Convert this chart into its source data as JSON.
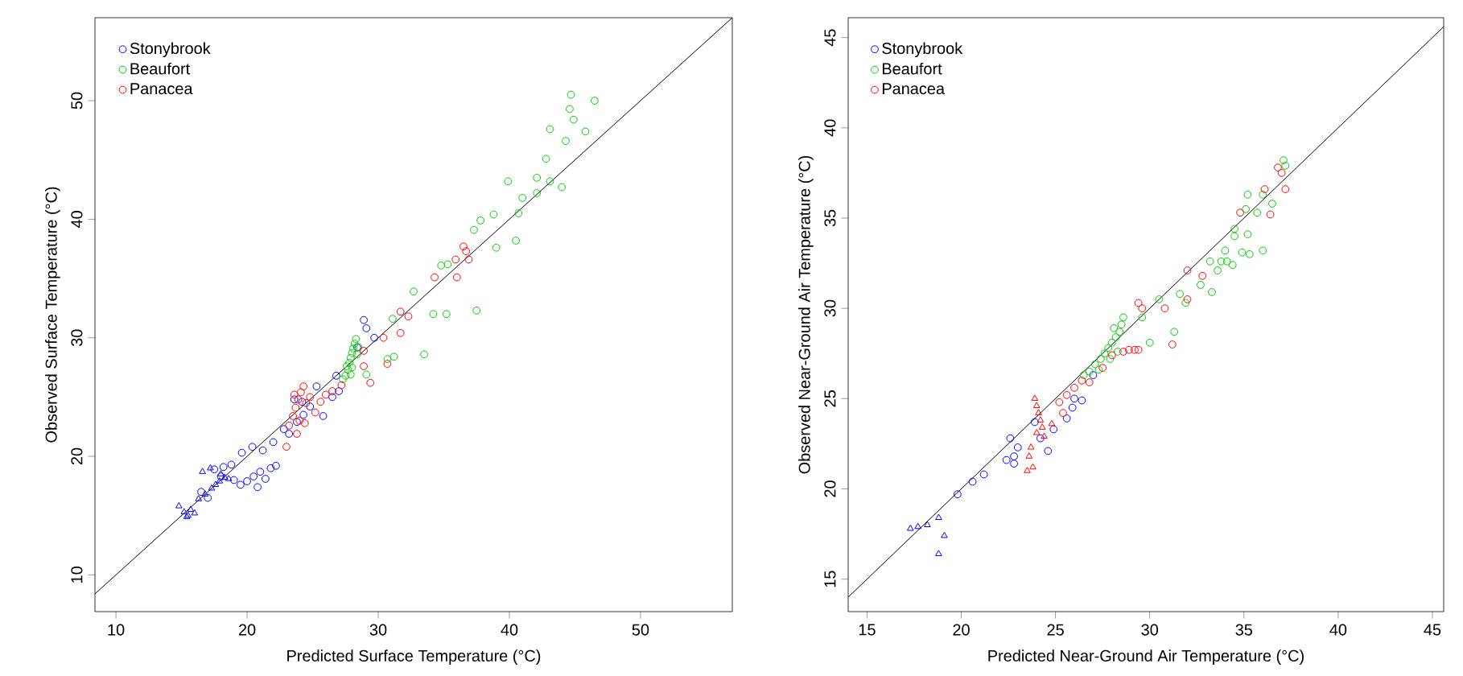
{
  "chart_data": [
    {
      "type": "scatter",
      "xlabel": "Predicted Surface Temperature (°C)",
      "ylabel": "Observed Surface Temperature (°C)",
      "xlim": [
        8.4,
        57
      ],
      "ylim": [
        6.9,
        57
      ],
      "xticks": [
        10,
        20,
        30,
        40,
        50
      ],
      "yticks": [
        10,
        20,
        30,
        40,
        50
      ],
      "legend": "top left",
      "marker": "circle",
      "series": [
        {
          "name": "Stonybrook",
          "color": "#0000ff",
          "x": [
            17.5,
            18.2,
            18.8,
            18.0,
            19.0,
            19.5,
            20.0,
            20.5,
            21.0,
            21.4,
            21.8,
            22.2,
            20.8,
            19.6,
            20.4,
            21.2,
            22.0,
            22.8,
            23.2,
            23.8,
            24.3,
            24.8,
            25.3,
            24.2,
            23.6,
            25.8,
            26.5,
            27.0,
            26.8,
            28.9,
            29.1,
            29.7,
            28.4,
            16.5,
            17.0
          ],
          "values": [
            18.9,
            19.1,
            19.3,
            18.3,
            18.0,
            17.6,
            17.9,
            18.3,
            18.7,
            18.1,
            19.0,
            19.2,
            17.4,
            20.3,
            20.8,
            20.5,
            21.2,
            22.3,
            21.9,
            22.9,
            23.5,
            24.2,
            25.9,
            24.6,
            24.8,
            23.4,
            25.0,
            25.5,
            26.8,
            31.5,
            30.8,
            30.0,
            29.2,
            17.0,
            16.5
          ]
        },
        {
          "name": "Beaufort",
          "color": "#00cc00",
          "x": [
            44.7,
            46.5,
            44.6,
            44.9,
            43.1,
            44.3,
            45.8,
            42.8,
            42.1,
            43.1,
            44.0,
            39.9,
            41.0,
            42.1,
            40.7,
            38.8,
            37.8,
            37.3,
            39.0,
            40.5,
            35.3,
            34.8,
            32.7,
            34.2,
            35.2,
            37.5,
            31.1,
            33.5,
            30.7,
            31.2,
            29.1,
            27.5,
            27.7,
            27.8,
            27.9,
            28.0,
            28.1,
            28.2,
            28.3,
            27.6,
            28.0,
            28.4,
            27.3,
            28.5,
            27.9
          ],
          "values": [
            50.5,
            50.0,
            49.3,
            48.4,
            47.6,
            46.6,
            47.4,
            45.1,
            43.5,
            43.2,
            42.7,
            43.2,
            41.8,
            42.2,
            40.5,
            40.4,
            39.9,
            39.1,
            37.6,
            38.2,
            36.2,
            36.1,
            33.9,
            32.0,
            32.0,
            32.3,
            31.6,
            28.6,
            28.2,
            28.4,
            26.9,
            26.8,
            27.3,
            27.9,
            28.3,
            28.7,
            29.1,
            29.5,
            29.9,
            27.6,
            27.5,
            28.6,
            26.5,
            29.2,
            26.9
          ]
        },
        {
          "name": "Panacea",
          "color": "#ff0000",
          "x": [
            36.5,
            36.7,
            36.9,
            35.9,
            36.0,
            34.3,
            31.7,
            32.3,
            31.7,
            30.4,
            30.7,
            29.4,
            28.9,
            28.9,
            23.2,
            23.5,
            23.7,
            23.9,
            24.1,
            24.3,
            24.5,
            24.0,
            23.6,
            24.8,
            23.8,
            23.0,
            25.2,
            25.6,
            26.0,
            26.5,
            27.2,
            24.4
          ],
          "values": [
            37.7,
            37.3,
            36.6,
            36.6,
            35.1,
            35.1,
            32.2,
            31.8,
            30.4,
            30.0,
            27.8,
            26.2,
            27.6,
            28.9,
            22.6,
            23.4,
            24.1,
            24.8,
            25.4,
            25.9,
            24.5,
            23.0,
            25.2,
            25.0,
            21.9,
            20.8,
            23.7,
            24.6,
            25.2,
            25.5,
            26.0,
            22.8
          ]
        },
        {
          "color": "#0000ff",
          "marker": "triangle",
          "x": [
            14.8,
            15.2,
            15.5,
            15.7,
            16.0,
            15.4,
            16.3,
            16.8,
            17.3,
            17.6,
            18.0,
            17.9,
            18.3,
            17.2,
            16.6,
            18.6
          ],
          "values": [
            15.8,
            15.3,
            15.0,
            15.5,
            15.2,
            14.9,
            16.4,
            16.8,
            17.3,
            17.6,
            18.5,
            17.9,
            18.2,
            19.0,
            18.7,
            18.1
          ]
        },
        {
          "type": "line",
          "marker": "none",
          "color": "#000000",
          "x": [
            8.4,
            57
          ],
          "values": [
            8.4,
            57
          ]
        }
      ]
    },
    {
      "type": "scatter",
      "xlabel": "Predicted Near-Ground Air Temperature (°C)",
      "ylabel": "Observed Near-Ground Air Temperature (°C)",
      "xlim": [
        14,
        45.6
      ],
      "ylim": [
        13.2,
        46.1
      ],
      "xticks": [
        15,
        20,
        25,
        30,
        35,
        40,
        45
      ],
      "yticks": [
        15,
        20,
        25,
        30,
        35,
        40,
        45
      ],
      "legend": "top left",
      "marker": "circle",
      "series": [
        {
          "name": "Stonybrook",
          "color": "#0000ff",
          "x": [
            19.8,
            20.6,
            21.2,
            22.4,
            22.8,
            22.8,
            22.6,
            23.0,
            23.9,
            24.2,
            24.6,
            24.9,
            25.6,
            25.9,
            26.4,
            26.0,
            27.0
          ],
          "values": [
            19.7,
            20.4,
            20.8,
            21.6,
            21.4,
            21.8,
            22.8,
            22.3,
            23.7,
            22.8,
            22.1,
            23.3,
            23.9,
            24.5,
            24.9,
            25.0,
            26.3
          ]
        },
        {
          "name": "Beaufort",
          "color": "#00cc00",
          "x": [
            37.1,
            37.2,
            35.2,
            36.0,
            36.5,
            35.1,
            35.7,
            34.5,
            34.5,
            35.2,
            34.9,
            35.3,
            36.0,
            34.0,
            33.8,
            34.1,
            34.4,
            33.2,
            33.6,
            32.7,
            33.3,
            31.6,
            31.9,
            30.5,
            29.6,
            31.3,
            30.0,
            26.8,
            27.1,
            27.4,
            27.6,
            27.8,
            28.0,
            28.2,
            28.4,
            28.5,
            28.6,
            28.3,
            27.9,
            27.3,
            28.1,
            26.5
          ],
          "values": [
            38.2,
            37.9,
            36.3,
            36.3,
            35.8,
            35.5,
            35.3,
            34.4,
            34.0,
            34.1,
            33.1,
            33.0,
            33.2,
            33.2,
            32.6,
            32.6,
            32.4,
            32.6,
            32.1,
            31.3,
            30.9,
            30.8,
            30.3,
            30.5,
            29.5,
            28.7,
            28.1,
            26.5,
            26.9,
            27.2,
            27.5,
            27.8,
            28.1,
            28.4,
            28.7,
            29.1,
            29.5,
            27.6,
            27.2,
            26.6,
            28.9,
            26.3
          ]
        },
        {
          "name": "Panacea",
          "color": "#ff0000",
          "x": [
            36.8,
            37.0,
            37.2,
            36.1,
            36.4,
            34.8,
            32.0,
            32.8,
            32.0,
            29.4,
            29.6,
            30.8,
            31.2,
            29.4,
            29.2,
            28.9,
            25.2,
            25.6,
            26.0,
            26.4,
            26.8,
            25.4,
            27.5,
            28.0,
            28.6
          ],
          "values": [
            37.8,
            37.5,
            36.6,
            36.6,
            35.2,
            35.3,
            32.1,
            31.8,
            30.5,
            30.3,
            30.0,
            30.0,
            28.0,
            27.7,
            27.7,
            27.7,
            24.8,
            25.2,
            25.6,
            26.0,
            25.9,
            24.2,
            26.7,
            27.4,
            27.6
          ]
        },
        {
          "color": "#0000ff",
          "marker": "triangle",
          "x": [
            17.3,
            17.7,
            18.2,
            18.8,
            19.1,
            18.8
          ],
          "values": [
            17.8,
            17.9,
            18.0,
            18.4,
            17.4,
            16.4
          ]
        },
        {
          "color": "#ff0000",
          "marker": "triangle",
          "x": [
            23.9,
            24.0,
            24.1,
            24.2,
            24.3,
            24.0,
            23.7,
            23.6,
            23.8,
            23.5,
            24.4,
            24.8
          ],
          "values": [
            25.0,
            24.6,
            24.2,
            23.8,
            23.4,
            23.1,
            22.3,
            21.8,
            21.2,
            21.0,
            22.9,
            23.6
          ]
        },
        {
          "type": "line",
          "marker": "none",
          "color": "#000000",
          "x": [
            14,
            45.6
          ],
          "values": [
            14,
            45.6
          ]
        }
      ]
    }
  ]
}
